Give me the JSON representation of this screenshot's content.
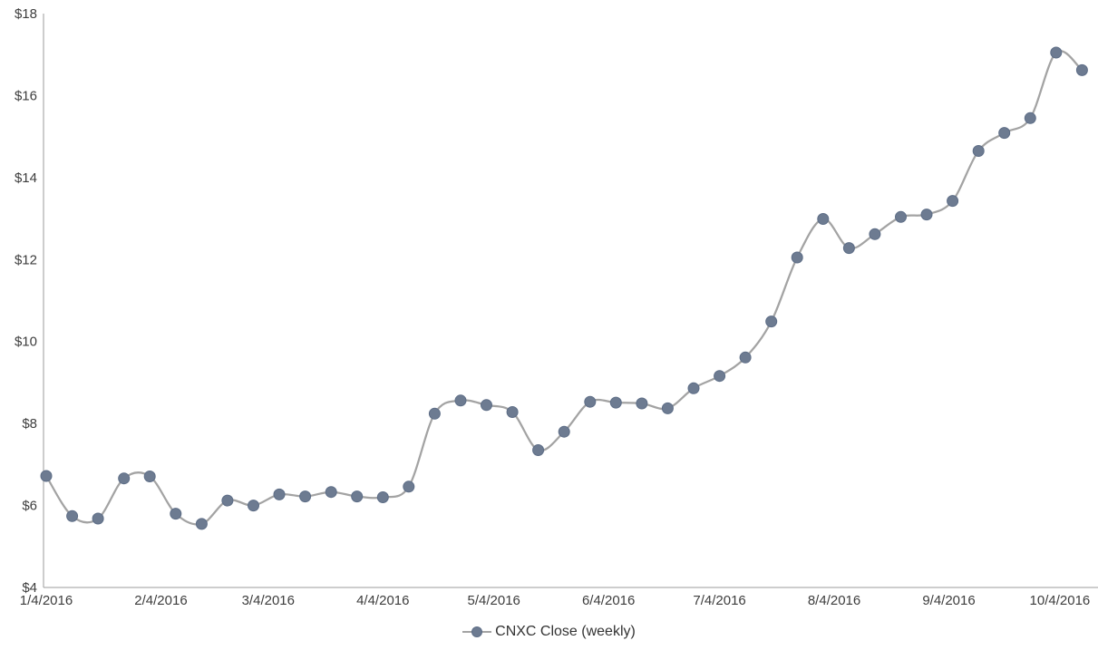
{
  "chart_data": {
    "type": "line",
    "title": "",
    "xlabel": "",
    "ylabel": "",
    "grid": false,
    "smoothed_line": true,
    "legend_position": "bottom-center",
    "ylim": [
      4,
      18
    ],
    "y_ticks": [
      4,
      6,
      8,
      10,
      12,
      14,
      16,
      18
    ],
    "y_tick_prefix": "$",
    "x_tick_labels": [
      "1/4/2016",
      "2/4/2016",
      "3/4/2016",
      "4/4/2016",
      "5/4/2016",
      "6/4/2016",
      "7/4/2016",
      "8/4/2016",
      "9/4/2016",
      "10/4/2016"
    ],
    "x": [
      "1/4/2016",
      "1/11/2016",
      "1/18/2016",
      "1/25/2016",
      "2/1/2016",
      "2/8/2016",
      "2/15/2016",
      "2/22/2016",
      "2/29/2016",
      "3/7/2016",
      "3/14/2016",
      "3/21/2016",
      "3/28/2016",
      "4/4/2016",
      "4/11/2016",
      "4/18/2016",
      "4/25/2016",
      "5/2/2016",
      "5/9/2016",
      "5/16/2016",
      "5/23/2016",
      "5/30/2016",
      "6/6/2016",
      "6/13/2016",
      "6/20/2016",
      "6/27/2016",
      "7/4/2016",
      "7/11/2016",
      "7/18/2016",
      "7/25/2016",
      "8/1/2016",
      "8/8/2016",
      "8/15/2016",
      "8/22/2016",
      "8/29/2016",
      "9/5/2016",
      "9/12/2016",
      "9/19/2016",
      "9/26/2016",
      "10/3/2016",
      "10/10/2016"
    ],
    "series": [
      {
        "name": "CNXC Close (weekly)",
        "values": [
          6.72,
          5.74,
          5.68,
          6.66,
          6.71,
          5.8,
          5.55,
          6.12,
          6.0,
          6.27,
          6.22,
          6.33,
          6.22,
          6.2,
          6.46,
          8.24,
          8.56,
          8.45,
          8.28,
          7.35,
          7.8,
          8.53,
          8.51,
          8.49,
          8.37,
          8.86,
          9.16,
          9.61,
          10.49,
          12.05,
          12.99,
          12.28,
          12.62,
          13.04,
          13.1,
          13.43,
          14.65,
          15.09,
          15.45,
          17.05,
          16.62
        ]
      }
    ],
    "colors": {
      "line": "#a3a3a3",
      "marker_fill": "#6d7b91",
      "marker_stroke": "#5d6d86",
      "axis": "#9b9b9b",
      "text": "#3d3d3d"
    },
    "legend": {
      "label": "CNXC Close (weekly)"
    }
  }
}
